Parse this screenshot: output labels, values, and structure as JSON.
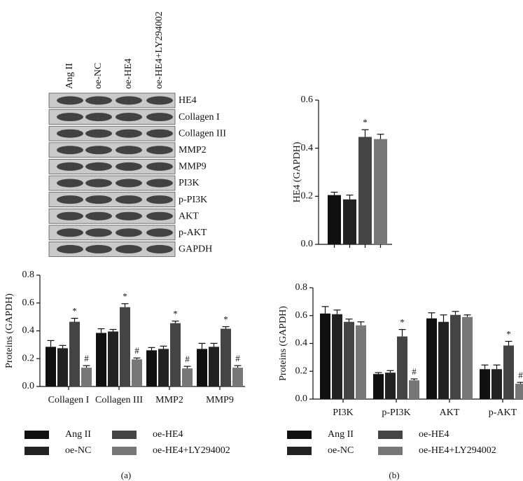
{
  "blot": {
    "lanes": [
      "Ang II",
      "oe-NC",
      "oe-HE4",
      "oe-HE4+LY294002"
    ],
    "proteins": [
      "HE4",
      "Collagen I",
      "Collagen III",
      "MMP2",
      "MMP9",
      "PI3K",
      "p-PI3K",
      "AKT",
      "p-AKT",
      "GAPDH"
    ]
  },
  "panel_labels": [
    "(a)",
    "(b)"
  ],
  "chart_data": [
    {
      "type": "bar",
      "ylabel": "HE4 (GAPDH)",
      "ylim": [
        0,
        0.6
      ],
      "yticks": [
        {
          "value": 0,
          "label": "0.0"
        },
        0.2,
        0.4,
        0.6
      ],
      "values": [
        0.205,
        0.187,
        0.447,
        0.438
      ],
      "errors": [
        0.012,
        0.018,
        0.03,
        0.02
      ],
      "colors": [
        "#111111",
        "#222222",
        "#444444",
        "#777777"
      ],
      "annotations": [
        null,
        null,
        "*",
        null
      ]
    },
    {
      "type": "grouped-bar",
      "ylabel": "Proteins (GAPDH)",
      "ylim": [
        0,
        0.8
      ],
      "yticks": [
        {
          "value": 0,
          "label": "0.0"
        },
        0.2,
        0.4,
        0.6,
        0.8
      ],
      "categories": [
        "Collagen I",
        "Collagen III",
        "MMP2",
        "MMP9"
      ],
      "legend": true,
      "series": [
        {
          "name": "Ang II",
          "color": "#111111",
          "values": [
            0.285,
            0.385,
            0.26,
            0.27
          ],
          "errors": [
            0.045,
            0.03,
            0.02,
            0.04
          ],
          "annotations": [
            null,
            null,
            null,
            null
          ]
        },
        {
          "name": "oe-NC",
          "color": "#222222",
          "values": [
            0.275,
            0.395,
            0.27,
            0.285
          ],
          "errors": [
            0.02,
            0.015,
            0.02,
            0.025
          ],
          "annotations": [
            null,
            null,
            null,
            null
          ]
        },
        {
          "name": "oe-HE4",
          "color": "#444444",
          "values": [
            0.465,
            0.57,
            0.455,
            0.415
          ],
          "errors": [
            0.025,
            0.025,
            0.015,
            0.015
          ],
          "annotations": [
            "*",
            "*",
            "*",
            "*"
          ]
        },
        {
          "name": "oe-HE4+LY294002",
          "color": "#777777",
          "values": [
            0.135,
            0.195,
            0.13,
            0.135
          ],
          "errors": [
            0.015,
            0.01,
            0.015,
            0.015
          ],
          "annotations": [
            "#",
            "#",
            "#",
            "#"
          ]
        }
      ]
    },
    {
      "type": "grouped-bar",
      "ylabel": "Proteins (GAPDH)",
      "ylim": [
        0,
        0.8
      ],
      "yticks": [
        {
          "value": 0,
          "label": "0.0"
        },
        0.2,
        0.4,
        0.6,
        0.8
      ],
      "categories": [
        "PI3K",
        "p-PI3K",
        "AKT",
        "p-AKT"
      ],
      "legend": true,
      "series": [
        {
          "name": "Ang II",
          "color": "#111111",
          "values": [
            0.615,
            0.18,
            0.58,
            0.215
          ],
          "errors": [
            0.05,
            0.01,
            0.04,
            0.03
          ],
          "annotations": [
            null,
            null,
            null,
            null
          ]
        },
        {
          "name": "oe-NC",
          "color": "#222222",
          "values": [
            0.61,
            0.19,
            0.555,
            0.215
          ],
          "errors": [
            0.03,
            0.015,
            0.05,
            0.03
          ],
          "annotations": [
            null,
            null,
            null,
            null
          ]
        },
        {
          "name": "oe-HE4",
          "color": "#444444",
          "values": [
            0.555,
            0.45,
            0.605,
            0.385
          ],
          "errors": [
            0.02,
            0.05,
            0.025,
            0.03
          ],
          "annotations": [
            null,
            "*",
            null,
            "*"
          ]
        },
        {
          "name": "oe-HE4+LY294002",
          "color": "#777777",
          "values": [
            0.53,
            0.135,
            0.59,
            0.11
          ],
          "errors": [
            0.025,
            0.01,
            0.015,
            0.01
          ],
          "annotations": [
            null,
            "#",
            null,
            "#"
          ]
        }
      ]
    }
  ]
}
